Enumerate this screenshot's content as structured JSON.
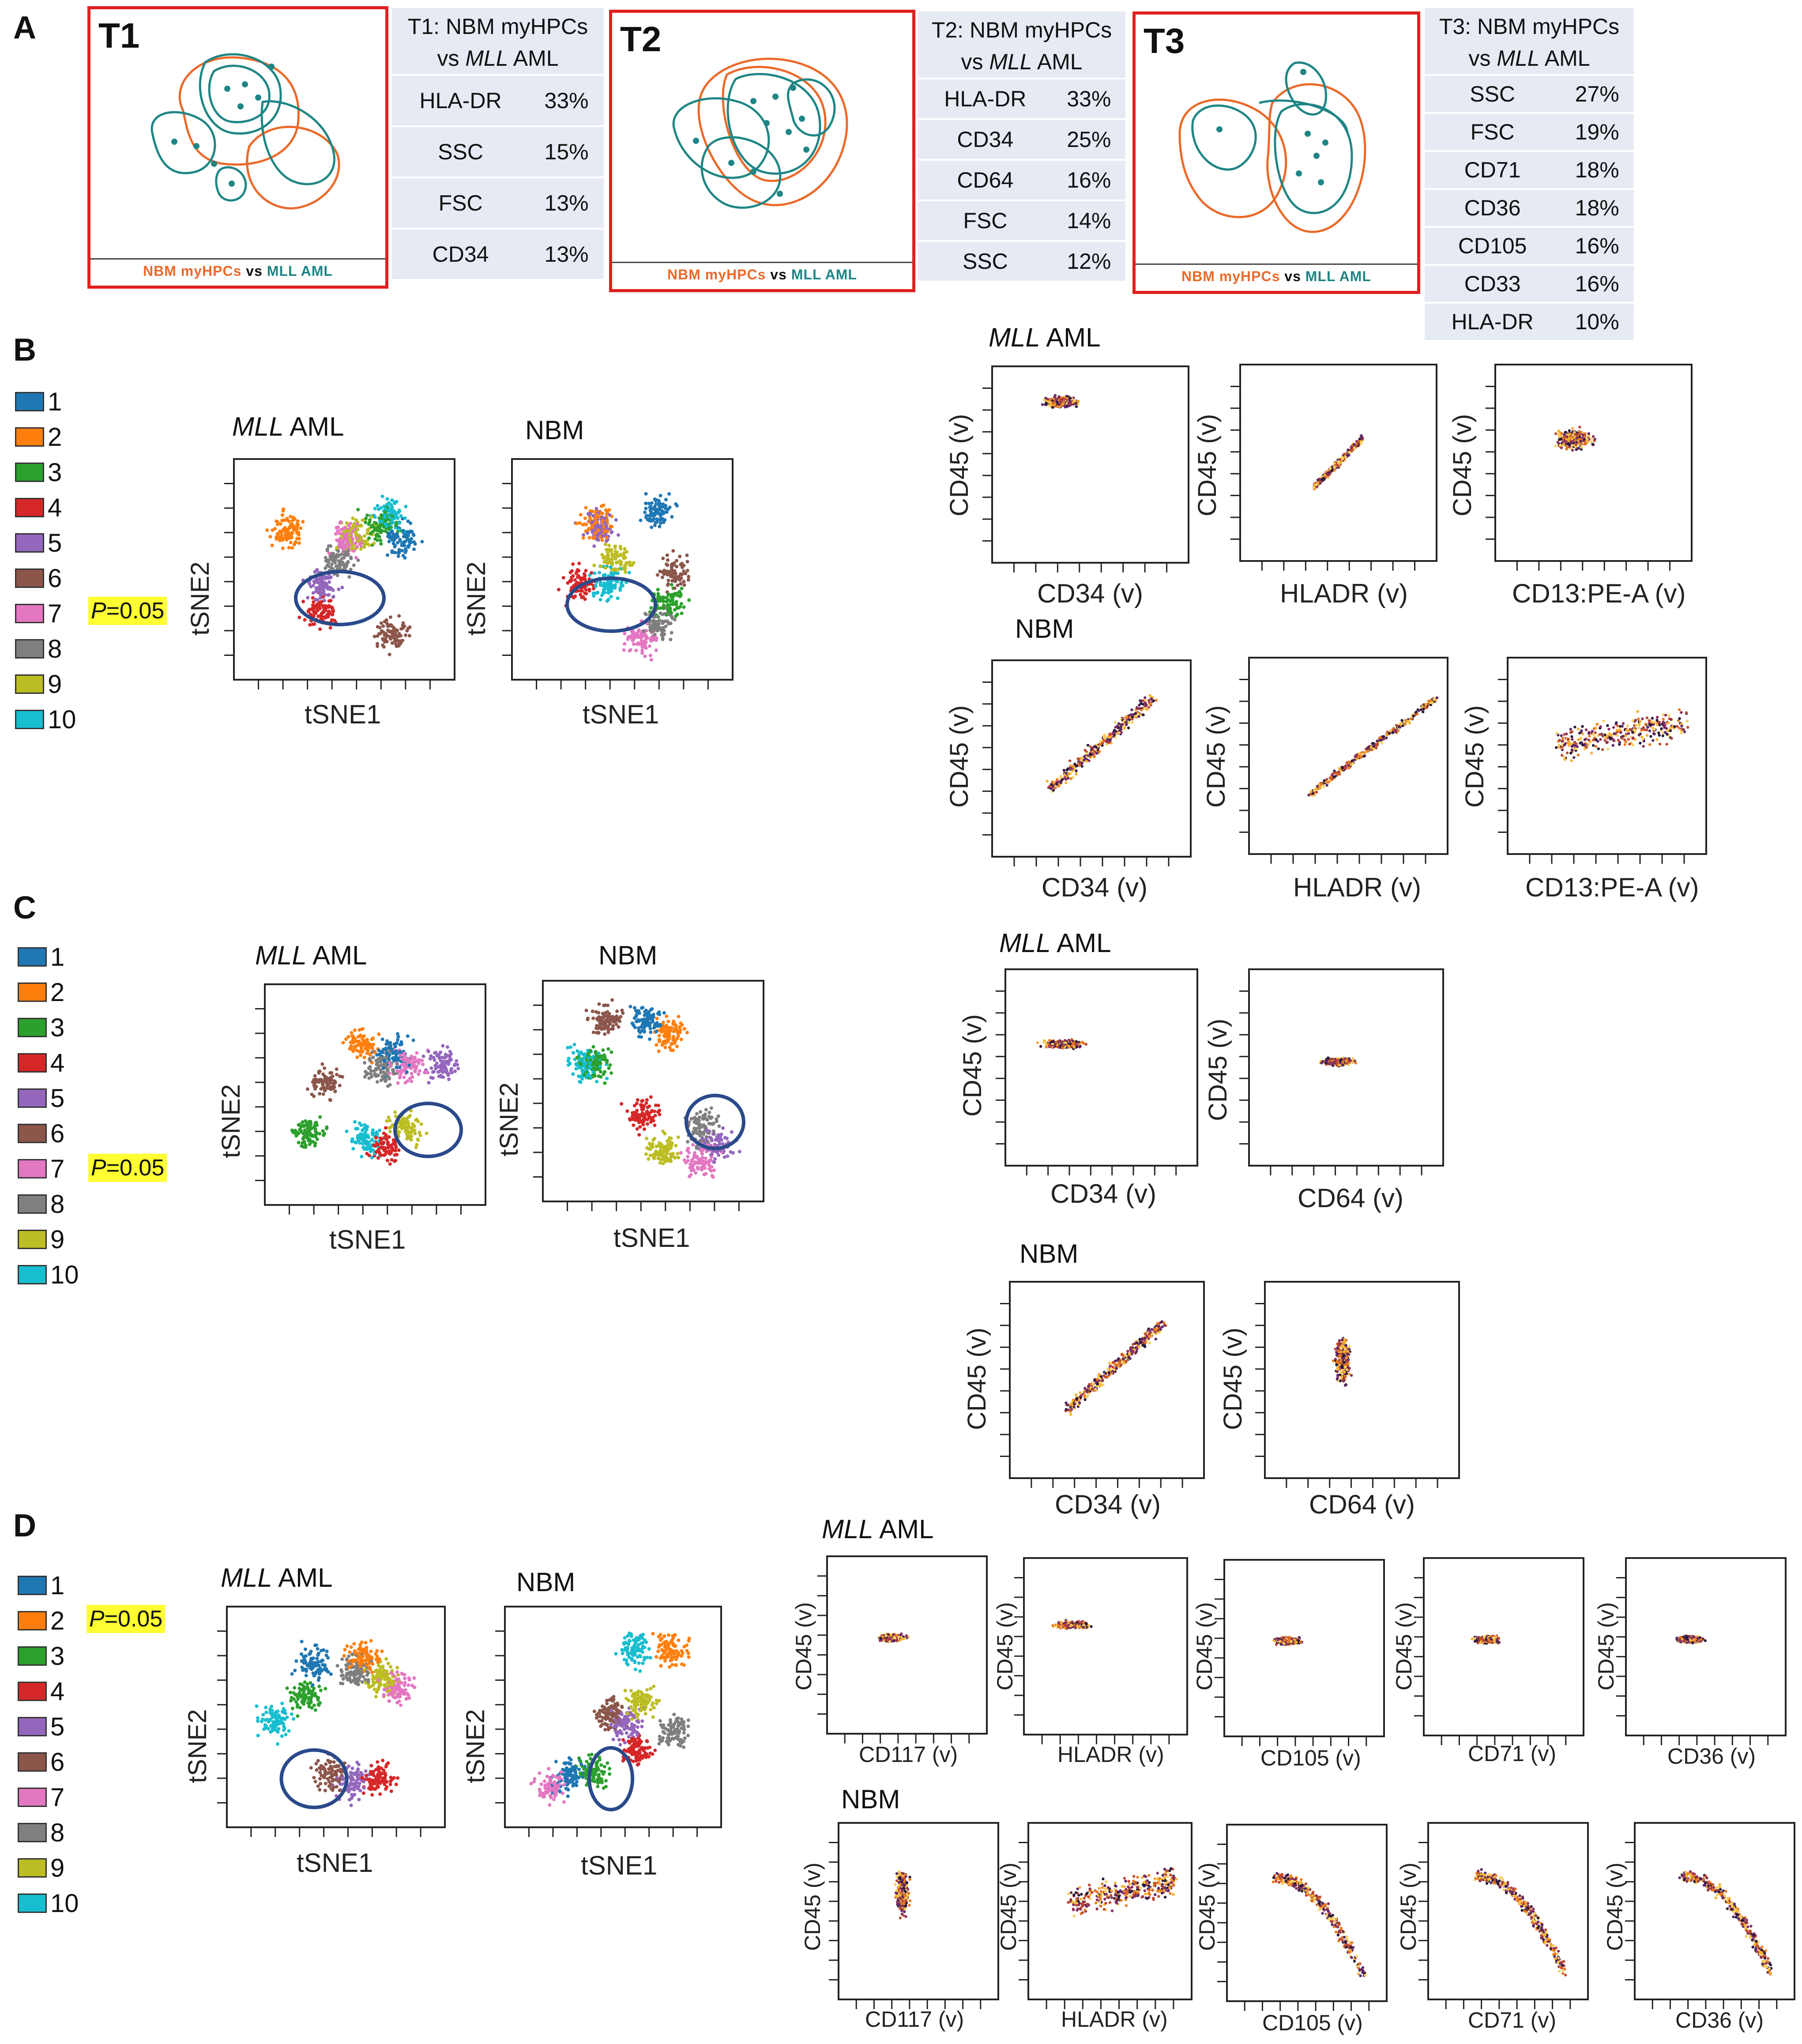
{
  "panels": {
    "A": "A",
    "B": "B",
    "C": "C",
    "D": "D"
  },
  "panelA": {
    "T1": {
      "label": "T1",
      "caption_a": "NBM myHPCs",
      "caption_vs": " vs ",
      "caption_b": "MLL AML",
      "table_title_1": "T1: NBM myHPCs",
      "table_title_2a": "vs ",
      "table_title_2b": "MLL",
      "table_title_2c": " AML",
      "rows": [
        [
          "HLA-DR",
          "33%"
        ],
        [
          "SSC",
          "15%"
        ],
        [
          "FSC",
          "13%"
        ],
        [
          "CD34",
          "13%"
        ]
      ]
    },
    "T2": {
      "label": "T2",
      "caption_a": "NBM myHPCs",
      "caption_vs": " vs ",
      "caption_b": "MLL AML",
      "table_title_1": "T2: NBM myHPCs",
      "table_title_2a": "vs ",
      "table_title_2b": "MLL",
      "table_title_2c": " AML",
      "rows": [
        [
          "HLA-DR",
          "33%"
        ],
        [
          "CD34",
          "25%"
        ],
        [
          "CD64",
          "16%"
        ],
        [
          "FSC",
          "14%"
        ],
        [
          "SSC",
          "12%"
        ]
      ]
    },
    "T3": {
      "label": "T3",
      "caption_a": "NBM myHPCs",
      "caption_vs": " vs ",
      "caption_b": "MLL AML",
      "table_title_1": "T3: NBM myHPCs",
      "table_title_2a": "vs ",
      "table_title_2b": "MLL",
      "table_title_2c": " AML",
      "rows": [
        [
          "SSC",
          "27%"
        ],
        [
          "FSC",
          "19%"
        ],
        [
          "CD71",
          "18%"
        ],
        [
          "CD36",
          "18%"
        ],
        [
          "CD105",
          "16%"
        ],
        [
          "CD33",
          "16%"
        ],
        [
          "HLA-DR",
          "10%"
        ]
      ]
    }
  },
  "legend": {
    "items": [
      "1",
      "2",
      "3",
      "4",
      "5",
      "6",
      "7",
      "8",
      "9",
      "10"
    ],
    "colors": [
      "#1f77b4",
      "#ff7f0e",
      "#2ca02c",
      "#d62728",
      "#9467bd",
      "#8c564b",
      "#e377c2",
      "#7f7f7f",
      "#bcbd22",
      "#17becf"
    ]
  },
  "pvalue": {
    "p": "P",
    "eq": "=0.05"
  },
  "tsne": {
    "xlabel": "tSNE1",
    "ylabel": "tSNE2",
    "aml_title_i": "MLL",
    "aml_title_r": " AML",
    "nbm_title": "NBM"
  },
  "flow": {
    "ylabel": "CD45 (v)",
    "aml_title_i": "MLL",
    "aml_title_r": " AML",
    "nbm_title": "NBM",
    "B_x": [
      "CD34 (v)",
      "HLADR (v)",
      "CD13:PE-A (v)"
    ],
    "C_x": [
      "CD34 (v)",
      "CD64 (v)"
    ],
    "D_x": [
      "CD117 (v)",
      "HLADR (v)",
      "CD105 (v)",
      "CD71 (v)",
      "CD36 (v)"
    ]
  },
  "colors": {
    "red_border": "#e02020",
    "orange": "#ea6a2a",
    "teal": "#1f8585",
    "table_bg": "#e6eaf3",
    "highlight": "#ffff33",
    "circle": "#2a4a8a"
  }
}
